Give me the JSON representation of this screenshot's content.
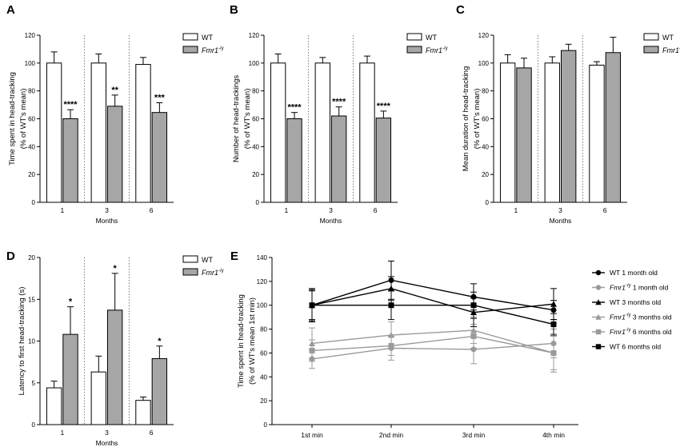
{
  "chart_data": [
    {
      "panel": "A",
      "type": "bar",
      "categories": [
        "1",
        "3",
        "6"
      ],
      "xlabel": "Months",
      "ylabel_lines": [
        "Time spent in head-tracking",
        "(% of WT's mean)"
      ],
      "ylim": [
        0,
        120
      ],
      "yticks": [
        0,
        20,
        40,
        60,
        80,
        100,
        120
      ],
      "series": [
        {
          "name": "WT",
          "values": [
            100,
            100,
            99
          ],
          "errors": [
            8,
            6.5,
            5
          ]
        },
        {
          "name": "Fmr1",
          "values": [
            60,
            69,
            64.5
          ],
          "errors": [
            6.5,
            8,
            7
          ]
        }
      ],
      "significance": [
        "****",
        "**",
        "***"
      ],
      "legend": {
        "wt": "WT",
        "ko": "Fmr1",
        "ko_sup": "-/y"
      }
    },
    {
      "panel": "B",
      "type": "bar",
      "categories": [
        "1",
        "3",
        "6"
      ],
      "xlabel": "Months",
      "ylabel_lines": [
        "Number of head-trackings",
        "(% of WT's mean)"
      ],
      "ylim": [
        0,
        120
      ],
      "yticks": [
        0,
        20,
        40,
        60,
        80,
        100,
        120
      ],
      "series": [
        {
          "name": "WT",
          "values": [
            100,
            100,
            100
          ],
          "errors": [
            6.5,
            4,
            5
          ]
        },
        {
          "name": "Fmr1",
          "values": [
            60,
            62,
            60.5
          ],
          "errors": [
            4.5,
            6.5,
            5
          ]
        }
      ],
      "significance": [
        "****",
        "****",
        "****"
      ],
      "legend": {
        "wt": "WT",
        "ko": "Fmr1",
        "ko_sup": "-/y"
      }
    },
    {
      "panel": "C",
      "type": "bar",
      "categories": [
        "1",
        "3",
        "6"
      ],
      "xlabel": "Months",
      "ylabel_lines": [
        "Mean duration of head-tracking",
        "(% of WT's mean)"
      ],
      "ylim": [
        0,
        120
      ],
      "yticks": [
        0,
        20,
        40,
        60,
        80,
        100,
        120
      ],
      "series": [
        {
          "name": "WT",
          "values": [
            100,
            100,
            98.5
          ],
          "errors": [
            6,
            4.5,
            2.5
          ]
        },
        {
          "name": "Fmr1",
          "values": [
            96.5,
            109,
            107.5
          ],
          "errors": [
            7,
            4.5,
            11
          ]
        }
      ],
      "significance": [
        "",
        "",
        ""
      ],
      "legend": {
        "wt": "WT",
        "ko": "Fmr1",
        "ko_sup": "-/y"
      }
    },
    {
      "panel": "D",
      "type": "bar",
      "categories": [
        "1",
        "3",
        "6"
      ],
      "xlabel": "Months",
      "ylabel_lines": [
        "Latency to first head-tracking (s)"
      ],
      "ylim": [
        0,
        20
      ],
      "yticks": [
        0,
        5,
        10,
        15,
        20
      ],
      "series": [
        {
          "name": "WT",
          "values": [
            4.4,
            6.3,
            2.9
          ],
          "errors": [
            0.8,
            1.9,
            0.4
          ]
        },
        {
          "name": "Fmr1",
          "values": [
            10.8,
            13.7,
            7.9
          ],
          "errors": [
            3.3,
            4.4,
            1.5
          ]
        }
      ],
      "significance": [
        "*",
        "*",
        "*"
      ],
      "legend": {
        "wt": "WT",
        "ko": "Fmr1",
        "ko_sup": "-/y"
      }
    },
    {
      "panel": "E",
      "type": "line",
      "x": [
        "1st min",
        "2nd min",
        "3rd min",
        "4th min"
      ],
      "ylabel_lines": [
        "Time spent in head-tracking",
        "(% of WT's mean 1st min)"
      ],
      "ylim": [
        0,
        140
      ],
      "yticks": [
        0,
        20,
        40,
        60,
        80,
        100,
        120,
        140
      ],
      "series": [
        {
          "name": "WT 1 month old",
          "label_pre": "",
          "label_sup": "",
          "label_post": "WT 1 month old",
          "color": "#000000",
          "marker": "circle",
          "values": [
            100,
            121,
            107,
            96
          ],
          "errors": [
            14,
            16,
            11,
            8
          ]
        },
        {
          "name": "Fmr1-/y 1 month old",
          "label_pre": "Fmr1",
          "label_sup": "-/y",
          "label_post": " 1 month old",
          "color": "#9a9a9a",
          "marker": "circle",
          "values": [
            55,
            64,
            63,
            68
          ],
          "errors": [
            8,
            10,
            12,
            12
          ]
        },
        {
          "name": "WT 3 months old",
          "label_pre": "",
          "label_sup": "",
          "label_post": "WT 3 months old",
          "color": "#000000",
          "marker": "triangle",
          "values": [
            100,
            114,
            94,
            101
          ],
          "errors": [
            13,
            10,
            12,
            13
          ]
        },
        {
          "name": "Fmr1-/y 3 months old",
          "label_pre": "Fmr1",
          "label_sup": "-/y",
          "label_post": " 3 months old",
          "color": "#9a9a9a",
          "marker": "triangle",
          "values": [
            68,
            75,
            79,
            60
          ],
          "errors": [
            13,
            11,
            11,
            14
          ]
        },
        {
          "name": "Fmr1-/y 6 months old",
          "label_pre": "Fmr1",
          "label_sup": "-/y",
          "label_post": " 6 months old",
          "color": "#9a9a9a",
          "marker": "square",
          "values": [
            62,
            66,
            74,
            60
          ],
          "errors": [
            9,
            8,
            10,
            16
          ]
        },
        {
          "name": "WT 6 months old",
          "label_pre": "",
          "label_sup": "",
          "label_post": "WT 6 months old",
          "color": "#000000",
          "marker": "square",
          "values": [
            100,
            100,
            100,
            84
          ],
          "errors": [
            12,
            12,
            11,
            9
          ]
        }
      ]
    }
  ]
}
